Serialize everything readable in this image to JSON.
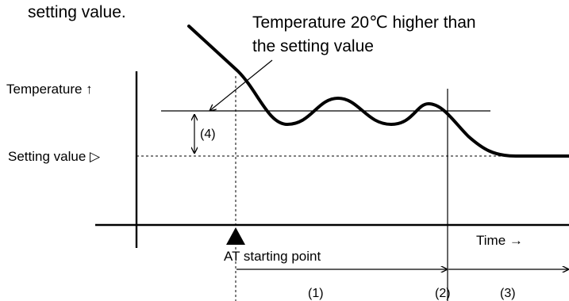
{
  "annotation_top_left": "setting value.",
  "annotation_line1": "Temperature 20℃ higher than",
  "annotation_line2": "the setting value",
  "y_axis_label": "Temperature ↑",
  "setting_value_label": "Setting value ▷",
  "x_axis_label": "Time →",
  "at_label": "AT starting point",
  "marker_4": "(4)",
  "phase_1": "(1)",
  "phase_2": "(2)",
  "phase_3": "(3)",
  "colors": {
    "ink": "#000000",
    "background": "#ffffff"
  }
}
